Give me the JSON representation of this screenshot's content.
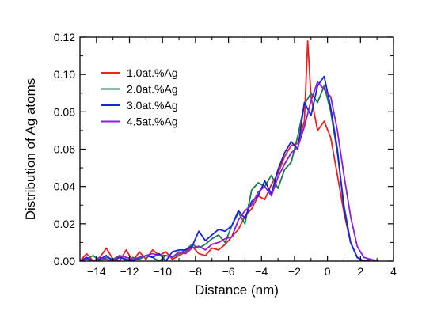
{
  "chart_data": {
    "type": "line",
    "title": "",
    "xlabel": "Distance (nm)",
    "ylabel": "Distribution of Ag atoms",
    "xlim": [
      -15,
      4
    ],
    "ylim": [
      0,
      0.12
    ],
    "xticks": [
      -14,
      -12,
      -10,
      -8,
      -6,
      -4,
      -2,
      0,
      2,
      4
    ],
    "xtick_labels": [
      "−14",
      "−12",
      "−10",
      "−8",
      "−6",
      "−4",
      "−2",
      "0",
      "2",
      "4"
    ],
    "yticks": [
      0.0,
      0.02,
      0.04,
      0.06,
      0.08,
      0.1,
      0.12
    ],
    "ytick_labels": [
      "0.00",
      "0.02",
      "0.04",
      "0.06",
      "0.08",
      "0.10",
      "0.12"
    ],
    "grid": false,
    "legend_position": "top-left",
    "series": [
      {
        "name": "1.0at.%Ag",
        "color": "#e8231f",
        "x": [
          -15,
          -14.6,
          -14.2,
          -13.8,
          -13.4,
          -13,
          -12.6,
          -12.2,
          -11.8,
          -11.4,
          -11,
          -10.6,
          -10.2,
          -9.8,
          -9.4,
          -9,
          -8.6,
          -8.2,
          -7.8,
          -7.4,
          -7,
          -6.6,
          -6.2,
          -5.8,
          -5.4,
          -5,
          -4.6,
          -4.2,
          -3.8,
          -3.4,
          -3,
          -2.6,
          -2.2,
          -1.8,
          -1.4,
          -1.2,
          -1,
          -0.6,
          -0.2,
          0.2,
          0.6,
          1,
          1.4,
          1.8,
          2.2,
          2.6
        ],
        "y": [
          0,
          0.004,
          0,
          0.002,
          0.007,
          0.001,
          0,
          0.006,
          0,
          0.005,
          0.001,
          0.006,
          0.003,
          0.005,
          0.001,
          0.003,
          0.005,
          0.008,
          0.004,
          0.003,
          0.007,
          0.006,
          0.009,
          0.013,
          0.017,
          0.024,
          0.028,
          0.035,
          0.033,
          0.041,
          0.047,
          0.056,
          0.062,
          0.063,
          0.075,
          0.118,
          0.088,
          0.07,
          0.075,
          0.066,
          0.046,
          0.026,
          0.01,
          0.002,
          0,
          0
        ],
        "values": [
          0,
          0.004,
          0,
          0.002,
          0.007,
          0.001,
          0,
          0.006,
          0,
          0.005,
          0.001,
          0.006,
          0.003,
          0.005,
          0.001,
          0.003,
          0.005,
          0.008,
          0.004,
          0.003,
          0.007,
          0.006,
          0.009,
          0.013,
          0.017,
          0.024,
          0.028,
          0.035,
          0.033,
          0.041,
          0.047,
          0.056,
          0.062,
          0.063,
          0.075,
          0.118,
          0.088,
          0.07,
          0.075,
          0.066,
          0.046,
          0.026,
          0.01,
          0.002,
          0,
          0
        ]
      },
      {
        "name": "2.0at.%Ag",
        "color": "#1f7a4d",
        "x": [
          -15,
          -14.6,
          -14.2,
          -13.8,
          -13.4,
          -13,
          -12.6,
          -12.2,
          -11.8,
          -11.4,
          -11,
          -10.6,
          -10.2,
          -9.8,
          -9.4,
          -9,
          -8.6,
          -8.2,
          -7.8,
          -7.4,
          -7,
          -6.6,
          -6.2,
          -5.8,
          -5.4,
          -5,
          -4.6,
          -4.2,
          -3.8,
          -3.4,
          -3,
          -2.6,
          -2.2,
          -1.8,
          -1.4,
          -1,
          -0.6,
          -0.2,
          0.2,
          0.6,
          1,
          1.4,
          1.8,
          2.2,
          2.6
        ],
        "y": [
          0,
          0.001,
          0.003,
          0,
          0.002,
          0.001,
          0.003,
          0,
          0.002,
          0.001,
          0.003,
          0.002,
          0,
          0.003,
          0.002,
          0.004,
          0.006,
          0.009,
          0.007,
          0.009,
          0.012,
          0.014,
          0.01,
          0.019,
          0.026,
          0.02,
          0.038,
          0.042,
          0.04,
          0.046,
          0.039,
          0.049,
          0.053,
          0.067,
          0.084,
          0.09,
          0.085,
          0.094,
          0.08,
          0.058,
          0.03,
          0.01,
          0.002,
          0,
          0
        ],
        "values": [
          0,
          0.001,
          0.003,
          0,
          0.002,
          0.001,
          0.003,
          0,
          0.002,
          0.001,
          0.003,
          0.002,
          0,
          0.003,
          0.002,
          0.004,
          0.006,
          0.009,
          0.007,
          0.009,
          0.012,
          0.014,
          0.01,
          0.019,
          0.026,
          0.02,
          0.038,
          0.042,
          0.04,
          0.046,
          0.039,
          0.049,
          0.053,
          0.067,
          0.084,
          0.09,
          0.085,
          0.094,
          0.08,
          0.058,
          0.03,
          0.01,
          0.002,
          0,
          0
        ]
      },
      {
        "name": "3.0at.%Ag",
        "color": "#1424e0",
        "x": [
          -15,
          -14.6,
          -14.2,
          -13.8,
          -13.4,
          -13,
          -12.6,
          -12.2,
          -11.8,
          -11.4,
          -11,
          -10.6,
          -10.2,
          -9.8,
          -9.4,
          -9,
          -8.6,
          -8.2,
          -7.8,
          -7.4,
          -7,
          -6.6,
          -6.2,
          -5.8,
          -5.4,
          -5,
          -4.6,
          -4.2,
          -3.8,
          -3.4,
          -3,
          -2.6,
          -2.2,
          -1.8,
          -1.4,
          -1,
          -0.6,
          -0.2,
          0.2,
          0.6,
          1,
          1.4,
          1.8,
          2.2,
          2.6,
          3
        ],
        "y": [
          0,
          0.002,
          0,
          0.001,
          0.003,
          0,
          0.002,
          0.001,
          0,
          0.002,
          0.003,
          0.002,
          0.004,
          0,
          0.005,
          0.006,
          0.006,
          0.008,
          0.016,
          0.011,
          0.014,
          0.017,
          0.016,
          0.019,
          0.027,
          0.023,
          0.032,
          0.035,
          0.043,
          0.036,
          0.049,
          0.058,
          0.064,
          0.06,
          0.085,
          0.078,
          0.094,
          0.099,
          0.082,
          0.06,
          0.028,
          0.01,
          0.002,
          0,
          0.001,
          0
        ],
        "values": [
          0,
          0.002,
          0,
          0.001,
          0.003,
          0,
          0.002,
          0.001,
          0,
          0.002,
          0.003,
          0.002,
          0.004,
          0,
          0.005,
          0.006,
          0.006,
          0.008,
          0.016,
          0.011,
          0.014,
          0.017,
          0.016,
          0.019,
          0.027,
          0.023,
          0.032,
          0.035,
          0.043,
          0.036,
          0.049,
          0.058,
          0.064,
          0.06,
          0.085,
          0.078,
          0.094,
          0.099,
          0.082,
          0.06,
          0.028,
          0.01,
          0.002,
          0,
          0.001,
          0
        ]
      },
      {
        "name": "4.5at.%Ag",
        "color": "#8b1fd6",
        "x": [
          -15,
          -14.6,
          -14.2,
          -13.8,
          -13.4,
          -13,
          -12.6,
          -12.2,
          -11.8,
          -11.4,
          -11,
          -10.6,
          -10.2,
          -9.8,
          -9.4,
          -9,
          -8.6,
          -8.2,
          -7.8,
          -7.4,
          -7,
          -6.6,
          -6.2,
          -5.8,
          -5.4,
          -5,
          -4.6,
          -4.2,
          -3.8,
          -3.4,
          -3,
          -2.6,
          -2.2,
          -1.8,
          -1.4,
          -1,
          -0.6,
          -0.2,
          0.2,
          0.6,
          1,
          1.4,
          1.8,
          2.2,
          2.6,
          3
        ],
        "y": [
          0,
          0.001,
          0,
          0.002,
          0.001,
          0,
          0.003,
          0.002,
          0.001,
          0.002,
          0.003,
          0.004,
          0.003,
          0.003,
          0.002,
          0.005,
          0.004,
          0.007,
          0.008,
          0.006,
          0.009,
          0.01,
          0.012,
          0.013,
          0.022,
          0.027,
          0.03,
          0.037,
          0.04,
          0.035,
          0.045,
          0.052,
          0.058,
          0.061,
          0.072,
          0.086,
          0.096,
          0.092,
          0.088,
          0.07,
          0.046,
          0.024,
          0.008,
          0.002,
          0.001,
          0
        ],
        "values": [
          0,
          0.001,
          0,
          0.002,
          0.001,
          0,
          0.003,
          0.002,
          0.001,
          0.002,
          0.003,
          0.004,
          0.003,
          0.003,
          0.002,
          0.005,
          0.004,
          0.007,
          0.008,
          0.006,
          0.009,
          0.01,
          0.012,
          0.013,
          0.022,
          0.027,
          0.03,
          0.037,
          0.04,
          0.035,
          0.045,
          0.052,
          0.058,
          0.061,
          0.072,
          0.086,
          0.096,
          0.092,
          0.088,
          0.07,
          0.046,
          0.024,
          0.008,
          0.002,
          0.001,
          0
        ]
      }
    ]
  }
}
